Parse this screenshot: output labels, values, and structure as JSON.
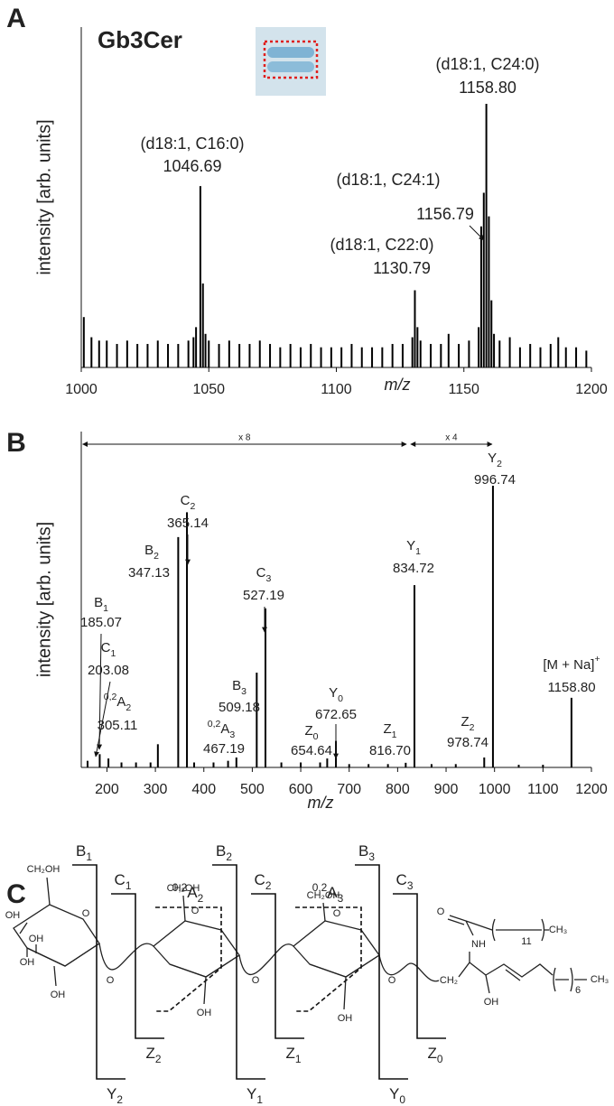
{
  "panel_labels": [
    "A",
    "B",
    "C"
  ],
  "chart_data": [
    {
      "type": "spectrum",
      "title": "Gb3Cer",
      "x_label": "m/z",
      "y_label": "intensity [arb. units]",
      "xlim": [
        1000,
        1200
      ],
      "ylim": [
        0,
        100
      ],
      "xticks": [
        1000,
        1050,
        1100,
        1150,
        1200
      ],
      "color": "#000000",
      "x": [
        1001,
        1004,
        1007,
        1010,
        1014,
        1018,
        1022,
        1026,
        1030,
        1034,
        1038,
        1042,
        1044,
        1045,
        1046.69,
        1047.7,
        1048.7,
        1050,
        1054,
        1058,
        1062,
        1066,
        1070,
        1074,
        1078,
        1082,
        1086,
        1090,
        1094,
        1098,
        1102,
        1106,
        1110,
        1114,
        1118,
        1122,
        1126,
        1129.8,
        1130.79,
        1131.8,
        1133,
        1137,
        1141,
        1144,
        1148,
        1152,
        1155.8,
        1156.79,
        1157.8,
        1158.8,
        1159.8,
        1160.8,
        1161.8,
        1164,
        1168,
        1172,
        1176,
        1180,
        1184,
        1187,
        1190,
        1194,
        1198
      ],
      "values": [
        15,
        9,
        8,
        8,
        7,
        8,
        7,
        7,
        8,
        7,
        7,
        8,
        9,
        12,
        54,
        25,
        10,
        8,
        7,
        8,
        7,
        7,
        8,
        7,
        6,
        7,
        6,
        7,
        6,
        6,
        6,
        7,
        6,
        6,
        6,
        7,
        7,
        9,
        23,
        12,
        8,
        7,
        7,
        10,
        7,
        8,
        12,
        42,
        52,
        78.5,
        45,
        20,
        10,
        8,
        9,
        6,
        7,
        6,
        7,
        9,
        6,
        6,
        5
      ],
      "annotations": [
        {
          "text": "(d18:1, C16:0)",
          "peak": {
            "value": 1046.69,
            "label": "1046.69"
          }
        },
        {
          "text": "(d18:1, C24:0)",
          "peak": {
            "value": 1158.8,
            "label": "1158.80"
          }
        },
        {
          "text": "(d18:1, C24:1)",
          "peak": {
            "value": 1156.79,
            "label": "1156.79"
          }
        },
        {
          "text": "(d18:1, C22:0)",
          "peak": {
            "value": 1130.79,
            "label": "1130.79"
          }
        }
      ]
    },
    {
      "type": "spectrum",
      "x_label": "m/z",
      "y_label": "intensity [arb. units]",
      "xlim": [
        147,
        1200
      ],
      "ylim": [
        0,
        100
      ],
      "xticks": [
        200,
        300,
        400,
        500,
        600,
        700,
        800,
        900,
        1000,
        1100,
        1200
      ],
      "color": "#000000",
      "x": [
        160,
        185.07,
        203.08,
        230,
        260,
        290,
        305.11,
        347.13,
        365.14,
        380,
        420,
        450,
        467.19,
        509.18,
        527.19,
        560,
        600,
        640,
        654.64,
        672.65,
        700,
        740,
        780,
        816.7,
        834.72,
        870,
        920,
        978.74,
        996.74,
        1050,
        1100,
        1158.8
      ],
      "values": [
        2,
        4,
        2.7,
        1.5,
        1.5,
        1.5,
        7,
        69.5,
        77,
        1.5,
        1.5,
        2,
        3,
        28.6,
        48,
        1.5,
        1.5,
        1.5,
        2.7,
        8,
        1,
        1,
        1,
        1.4,
        55,
        1,
        1,
        3,
        85,
        0.8,
        0.8,
        21
      ],
      "annotations": [
        {
          "ion": "B",
          "sub": "1",
          "peak": {
            "value": 185.07,
            "label": "185.07"
          }
        },
        {
          "ion": "C",
          "sub": "1",
          "peak": {
            "value": 203.08,
            "label": "203.08"
          }
        },
        {
          "pre": "0,2",
          "ion": "A",
          "sub": "2",
          "peak": {
            "value": 305.11,
            "label": "305.11"
          }
        },
        {
          "ion": "B",
          "sub": "2",
          "peak": {
            "value": 347.13,
            "label": "347.13"
          }
        },
        {
          "ion": "C",
          "sub": "2",
          "peak": {
            "value": 365.14,
            "label": "365.14"
          }
        },
        {
          "pre": "0,2",
          "ion": "A",
          "sub": "3",
          "peak": {
            "value": 467.19,
            "label": "467.19"
          }
        },
        {
          "ion": "B",
          "sub": "3",
          "peak": {
            "value": 509.18,
            "label": "509.18"
          }
        },
        {
          "ion": "C",
          "sub": "3",
          "peak": {
            "value": 527.19,
            "label": "527.19"
          }
        },
        {
          "ion": "Z",
          "sub": "0",
          "peak": {
            "value": 654.64,
            "label": "654.64"
          }
        },
        {
          "ion": "Y",
          "sub": "0",
          "peak": {
            "value": 672.65,
            "label": "672.65"
          }
        },
        {
          "ion": "Z",
          "sub": "1",
          "peak": {
            "value": 816.7,
            "label": "816.70"
          }
        },
        {
          "ion": "Y",
          "sub": "1",
          "peak": {
            "value": 834.72,
            "label": "834.72"
          }
        },
        {
          "ion": "Z",
          "sub": "2",
          "peak": {
            "value": 978.74,
            "label": "978.74"
          }
        },
        {
          "ion": "Y",
          "sub": "2",
          "peak": {
            "value": 996.74,
            "label": "996.74"
          }
        },
        {
          "ion": "[M + Na]",
          "sup": "+",
          "peak": {
            "value": 1158.8,
            "label": "1158.80"
          }
        }
      ],
      "zoom": [
        {
          "label": "x 8",
          "from": 150,
          "to": 818
        },
        {
          "label": "x 4",
          "from": 827,
          "to": 995
        }
      ]
    }
  ],
  "diagram": {
    "cleavages": [
      {
        "top": {
          "ion": "B",
          "sub": "1"
        },
        "bottom": {
          "ion": "Y",
          "sub": "2"
        }
      },
      {
        "top": {
          "ion": "C",
          "sub": "1"
        },
        "bottom": {
          "ion": "Z",
          "sub": "2"
        }
      },
      {
        "top": {
          "ion": "B",
          "sub": "2"
        },
        "bottom": {
          "ion": "Y",
          "sub": "1"
        }
      },
      {
        "top": {
          "ion": "C",
          "sub": "2"
        },
        "bottom": {
          "ion": "Z",
          "sub": "1"
        }
      },
      {
        "top": {
          "ion": "B",
          "sub": "3"
        },
        "bottom": {
          "ion": "Y",
          "sub": "0"
        }
      },
      {
        "top": {
          "ion": "C",
          "sub": "3"
        },
        "bottom": {
          "ion": "Z",
          "sub": "0"
        }
      }
    ],
    "cross_ring": [
      {
        "pre": "0,2",
        "ion": "A",
        "sub": "2"
      },
      {
        "pre": "0,2",
        "ion": "A",
        "sub": "3"
      }
    ],
    "atoms": [
      "CH₂OH",
      "O",
      "OH",
      "OH",
      "OH",
      "OH",
      "O",
      "CH₂OH",
      "O",
      "OH",
      "O",
      "CH₂OH",
      "O",
      "OH",
      "O",
      "CH₂",
      "O",
      "NH",
      "11",
      "CH₃",
      "OH",
      "6",
      "CH₃"
    ]
  }
}
